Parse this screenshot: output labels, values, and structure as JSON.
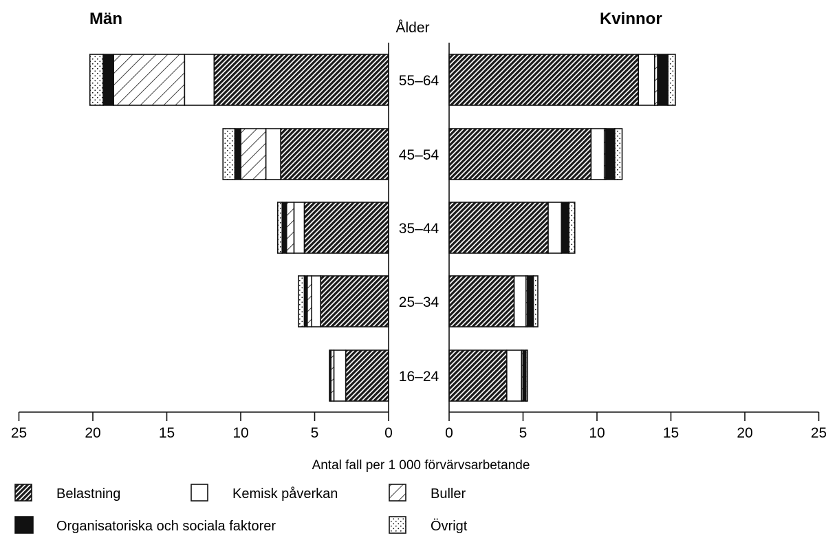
{
  "chart_data": {
    "type": "bar",
    "orientation": "horizontal-population-pyramid",
    "stacked": true,
    "left_title": "Män",
    "right_title": "Kvinnor",
    "category_header": "Ålder",
    "categories": [
      "55–64",
      "45–54",
      "35–44",
      "25–34",
      "16–24"
    ],
    "xlabel": "Antal fall per 1 000 förvärvsarbetande",
    "xlim": [
      0,
      25
    ],
    "xticks": [
      25,
      20,
      15,
      10,
      5,
      0
    ],
    "series": [
      {
        "name": "Belastning",
        "pattern": "dense-hatch"
      },
      {
        "name": "Kemisk påverkan",
        "pattern": "white"
      },
      {
        "name": "Buller",
        "pattern": "diagonal-lines"
      },
      {
        "name": "Organisatoriska och sociala faktorer",
        "pattern": "solid-black"
      },
      {
        "name": "Övrigt",
        "pattern": "dots"
      }
    ],
    "men": {
      "Belastning": [
        11.8,
        7.3,
        5.7,
        4.6,
        2.9
      ],
      "Kemisk påverkan": [
        2.0,
        1.0,
        0.7,
        0.6,
        0.8
      ],
      "Buller": [
        4.8,
        1.7,
        0.5,
        0.3,
        0.2
      ],
      "Organisatoriska och sociala faktorer": [
        0.7,
        0.4,
        0.3,
        0.2,
        0.1
      ],
      "Övrigt": [
        0.9,
        0.8,
        0.3,
        0.4,
        0.0
      ]
    },
    "women": {
      "Belastning": [
        12.8,
        9.6,
        6.7,
        4.4,
        3.9
      ],
      "Kemisk påverkan": [
        1.1,
        0.9,
        0.9,
        0.8,
        1.0
      ],
      "Buller": [
        0.2,
        0.1,
        0.0,
        0.1,
        0.1
      ],
      "Organisatoriska och sociala faktorer": [
        0.7,
        0.6,
        0.5,
        0.4,
        0.2
      ],
      "Övrigt": [
        0.5,
        0.5,
        0.4,
        0.3,
        0.1
      ]
    },
    "legend": [
      {
        "name": "Belastning",
        "pattern": "dense-hatch"
      },
      {
        "name": "Kemisk påverkan",
        "pattern": "white"
      },
      {
        "name": "Buller",
        "pattern": "diagonal-lines"
      },
      {
        "name": "Organisatoriska och sociala faktorer",
        "pattern": "solid-black"
      },
      {
        "name": "Övrigt",
        "pattern": "dots"
      }
    ],
    "legend_position": "bottom",
    "grid": false,
    "colors": {
      "ink": "#111111",
      "background": "#ffffff"
    }
  }
}
